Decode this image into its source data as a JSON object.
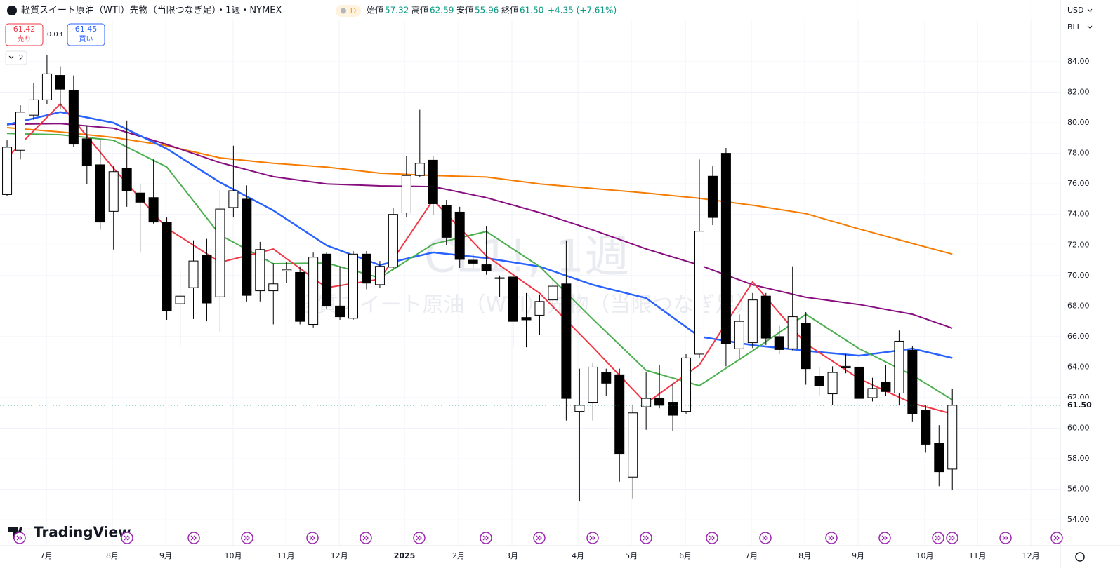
{
  "header": {
    "symbol_title": "軽質スイート原油（WTI）先物（当限つなぎ足）・1週・NYMEX",
    "flag": "D",
    "open_label": "始値",
    "open": "57.32",
    "high_label": "高値",
    "high": "62.59",
    "low_label": "安値",
    "low": "55.96",
    "close_label": "終値",
    "close": "61.50",
    "change": "+4.35 (+7.61%)"
  },
  "trade": {
    "sell_price": "61.42",
    "sell_label": "売り",
    "spread": "0.03",
    "buy_price": "61.45",
    "buy_label": "買い"
  },
  "indicator_count": "2",
  "currency": "USD",
  "unit": "BLL",
  "watermark": {
    "symbol": "CL1!, 1週",
    "description": "軽質スイート原油（WTI）先物（当限つなぎ足）"
  },
  "logo": "TradingView",
  "chart_data": {
    "type": "candlestick",
    "open": [
      75.3,
      78.2,
      80.5,
      81.5,
      83.1,
      82.1,
      78.95,
      77.25,
      74.2,
      77.0,
      75.4,
      75.1,
      73.5,
      68.15,
      69.2,
      71.3,
      68.6,
      74.45,
      75.0,
      69.0,
      69.0,
      70.3,
      70.2,
      66.8,
      71.4,
      68.0,
      67.2,
      71.4,
      69.4,
      70.55,
      74.1,
      76.55,
      77.55,
      74.6,
      74.15,
      71.0,
      70.7,
      69.8,
      69.9,
      67.25,
      67.4,
      68.4,
      69.45,
      61.1,
      61.7,
      63.65,
      63.5,
      56.8,
      61.4,
      61.95,
      61.7,
      61.1,
      64.85,
      76.5,
      78.0,
      65.2,
      65.6,
      68.65,
      66.0,
      65.2,
      66.85,
      63.4,
      62.25,
      63.95,
      64.0,
      62.0,
      63.0,
      62.3,
      65.1,
      61.15,
      59.0,
      57.32
    ],
    "high": [
      78.85,
      81.15,
      82.6,
      84.46,
      83.7,
      83.1,
      79.8,
      78.85,
      77.2,
      80.15,
      76.0,
      77.6,
      73.8,
      70.35,
      72.3,
      72.4,
      75.6,
      78.5,
      75.9,
      72.2,
      70.8,
      70.9,
      70.6,
      71.5,
      71.5,
      70.6,
      71.6,
      71.6,
      70.95,
      74.4,
      77.8,
      80.85,
      77.8,
      74.95,
      74.5,
      71.4,
      73.25,
      70.0,
      70.35,
      68.85,
      68.75,
      69.75,
      72.3,
      63.9,
      64.25,
      63.9,
      63.9,
      61.5,
      63.7,
      64.15,
      62.95,
      64.85,
      77.6,
      77.15,
      78.35,
      67.45,
      68.85,
      68.85,
      66.7,
      70.6,
      67.6,
      64.0,
      64.05,
      64.85,
      64.6,
      63.3,
      64.15,
      66.4,
      65.4,
      61.5,
      60.2,
      62.59
    ],
    "low": [
      75.2,
      77.6,
      80.2,
      81.2,
      80.9,
      78.4,
      76.0,
      73.0,
      71.7,
      74.5,
      71.5,
      73.4,
      67.1,
      65.3,
      67.15,
      67.0,
      66.3,
      73.8,
      68.3,
      68.3,
      66.8,
      69.5,
      66.8,
      66.6,
      67.8,
      67.1,
      67.1,
      69.1,
      69.2,
      70.4,
      73.8,
      76.45,
      73.95,
      72.0,
      70.5,
      70.5,
      70.05,
      68.6,
      65.3,
      65.3,
      66.1,
      67.8,
      60.5,
      55.2,
      60.5,
      62.1,
      56.5,
      55.4,
      59.9,
      61.3,
      59.8,
      60.95,
      64.6,
      73.3,
      64.05,
      64.6,
      65.25,
      65.45,
      64.85,
      65.1,
      62.85,
      62.1,
      61.5,
      63.6,
      61.5,
      61.75,
      62.1,
      61.5,
      60.4,
      58.4,
      56.2,
      55.96
    ],
    "close": [
      78.4,
      80.7,
      81.5,
      83.2,
      82.2,
      78.6,
      77.2,
      73.5,
      76.8,
      75.55,
      74.8,
      73.5,
      67.7,
      68.65,
      70.95,
      68.2,
      74.35,
      75.55,
      68.7,
      71.7,
      69.45,
      70.4,
      67.0,
      71.2,
      68.0,
      67.3,
      71.4,
      69.5,
      70.6,
      74.0,
      76.55,
      77.35,
      74.7,
      72.5,
      71.05,
      70.8,
      70.3,
      69.85,
      67.0,
      67.1,
      68.3,
      69.3,
      61.95,
      61.5,
      64.0,
      62.95,
      58.3,
      61.0,
      61.95,
      61.5,
      60.85,
      64.6,
      72.9,
      73.8,
      65.55,
      67.0,
      68.4,
      65.9,
      65.15,
      67.3,
      63.9,
      62.8,
      63.65,
      64.05,
      61.95,
      62.6,
      62.4,
      65.7,
      60.95,
      58.95,
      57.15,
      61.5
    ],
    "up_color": "#ffffff",
    "down_color": "#000000",
    "overlays": [
      {
        "color": "#f57c00",
        "x": [
          0,
          4,
          8,
          12,
          16,
          20,
          24,
          28,
          32,
          36,
          40,
          44,
          48,
          52,
          56,
          60,
          64,
          68,
          71
        ],
        "values": [
          79.68,
          79.4,
          79.04,
          78.5,
          77.7,
          77.35,
          77.1,
          76.7,
          76.55,
          76.45,
          76.0,
          75.7,
          75.4,
          75.05,
          74.6,
          74.05,
          73.05,
          72.1,
          71.4
        ]
      },
      {
        "color": "#880e7f",
        "x": [
          0,
          4,
          8,
          12,
          16,
          20,
          24,
          28,
          32,
          36,
          40,
          44,
          48,
          52,
          56,
          60,
          64,
          68,
          71
        ],
        "values": [
          79.9,
          79.95,
          79.64,
          78.58,
          77.39,
          76.47,
          76.0,
          75.87,
          75.82,
          75.1,
          74.12,
          72.98,
          71.74,
          70.68,
          69.39,
          68.57,
          68.1,
          67.46,
          66.55
        ]
      },
      {
        "color": "#2962ff",
        "x": [
          0,
          4,
          8,
          12,
          16,
          20,
          24,
          28,
          32,
          36,
          40,
          44,
          48,
          52,
          56,
          60,
          64,
          68,
          71
        ],
        "values": [
          79.87,
          80.7,
          80.0,
          78.3,
          76.1,
          74.26,
          71.97,
          70.68,
          71.51,
          71.14,
          70.59,
          69.39,
          68.52,
          66.0,
          65.44,
          65.07,
          64.75,
          65.21,
          64.6
        ]
      },
      {
        "color": "#4caf50",
        "x": [
          0,
          4,
          8,
          12,
          16,
          20,
          24,
          28,
          32,
          36,
          40,
          44,
          48,
          52,
          56,
          60,
          64,
          68,
          71
        ],
        "values": [
          79.3,
          79.22,
          78.85,
          77.1,
          72.65,
          70.77,
          70.82,
          69.85,
          72.06,
          72.88,
          70.59,
          67.14,
          63.79,
          62.78,
          65.07,
          67.46,
          65.21,
          63.47,
          61.86
        ]
      },
      {
        "color": "#f23645",
        "x": [
          0,
          4,
          8,
          12,
          16,
          20,
          24,
          28,
          32,
          36,
          40,
          44,
          48,
          52,
          56,
          60,
          64,
          68,
          71
        ],
        "values": [
          77.7,
          81.24,
          77.02,
          73.1,
          70.86,
          71.73,
          69.2,
          69.76,
          74.95,
          71.28,
          68.84,
          65.3,
          61.63,
          64.15,
          69.58,
          65.53,
          63.24,
          61.63,
          60.94
        ]
      }
    ],
    "xlim": [
      -0.53,
      79.11
    ],
    "xticks": [
      {
        "value": 2.95,
        "label": "7月"
      },
      {
        "value": 7.91,
        "label": "8月"
      },
      {
        "value": 11.92,
        "label": "9月"
      },
      {
        "value": 16.98,
        "label": "10月"
      },
      {
        "value": 20.94,
        "label": "11月"
      },
      {
        "value": 24.95,
        "label": "12月"
      },
      {
        "value": 29.85,
        "label": "2025"
      },
      {
        "value": 33.91,
        "label": "2月"
      },
      {
        "value": 37.92,
        "label": "3月"
      },
      {
        "value": 42.88,
        "label": "4月"
      },
      {
        "value": 46.89,
        "label": "5月"
      },
      {
        "value": 50.95,
        "label": "6月"
      },
      {
        "value": 55.91,
        "label": "7月"
      },
      {
        "value": 59.92,
        "label": "8月"
      },
      {
        "value": 63.92,
        "label": "9月"
      },
      {
        "value": 68.93,
        "label": "10月"
      },
      {
        "value": 72.89,
        "label": "11月"
      },
      {
        "value": 76.9,
        "label": "12月"
      }
    ],
    "ylim": [
      52.31,
      88.04
    ],
    "yticks": [
      {
        "value": 54,
        "label": "54.00"
      },
      {
        "value": 56,
        "label": "56.00"
      },
      {
        "value": 58,
        "label": "58.00"
      },
      {
        "value": 60,
        "label": "60.00"
      },
      {
        "value": 62,
        "label": "62.00"
      },
      {
        "value": 64,
        "label": "64.00"
      },
      {
        "value": 66,
        "label": "66.00"
      },
      {
        "value": 68,
        "label": "68.00"
      },
      {
        "value": 70,
        "label": "70.00"
      },
      {
        "value": 72,
        "label": "72.00"
      },
      {
        "value": 74,
        "label": "74.00"
      },
      {
        "value": 76,
        "label": "76.00"
      },
      {
        "value": 78,
        "label": "78.00"
      },
      {
        "value": 80,
        "label": "80.00"
      },
      {
        "value": 82,
        "label": "82.00"
      },
      {
        "value": 84,
        "label": "84.00"
      }
    ],
    "grid": true,
    "last_price": {
      "value": 61.5,
      "label": "61.50"
    }
  }
}
